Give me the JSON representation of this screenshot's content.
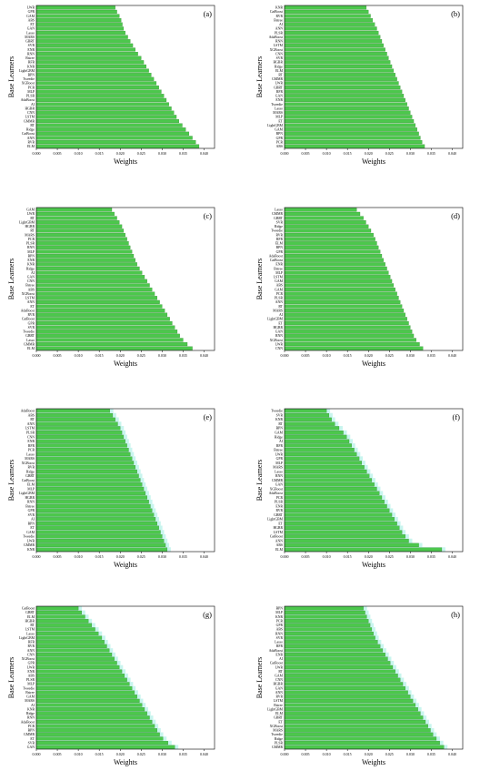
{
  "y_axis_label": "Base Learners",
  "x_axis_label": "Weights",
  "colors": {
    "bar": "#4cc74c",
    "bar_stroke": "#2e8b2e",
    "shadow": "#c8f5ee",
    "axis": "#000000"
  },
  "chart_data": [
    {
      "type": "bar",
      "orientation": "horizontal",
      "panel_label": "(a)",
      "xlim": [
        0,
        0.0425
      ],
      "ticks": [
        "0.000",
        "0.005",
        "0.010",
        "0.015",
        "0.020",
        "0.025",
        "0.030",
        "0.035",
        "0.040"
      ],
      "categories": [
        "LWR",
        "GPR",
        "GAM",
        "ABS",
        "ET",
        "GAN",
        "Lasso",
        "MARS",
        "GBRT",
        "SVR",
        "ENR",
        "RNN",
        "Bstree",
        "RFR",
        "KNR",
        "LightGBM",
        "BPN",
        "Tweedie",
        "XGBoost",
        "PCR",
        "MLP",
        "PLSR",
        "AdaBoost",
        "AI",
        "HGBR",
        "CNN",
        "LSTM",
        "GMMR",
        "RT",
        "Ridge",
        "CatBoost",
        "ANN",
        "RVR",
        "ELM"
      ],
      "values": [
        0.0188,
        0.0192,
        0.0198,
        0.0202,
        0.0205,
        0.0208,
        0.0212,
        0.0218,
        0.0224,
        0.023,
        0.0236,
        0.0242,
        0.025,
        0.0256,
        0.0262,
        0.0268,
        0.0274,
        0.028,
        0.0286,
        0.0292,
        0.0298,
        0.0304,
        0.031,
        0.0316,
        0.0322,
        0.0328,
        0.0334,
        0.034,
        0.0348,
        0.0356,
        0.0364,
        0.0372,
        0.038,
        0.0388
      ]
    },
    {
      "type": "bar",
      "orientation": "horizontal",
      "panel_label": "(b)",
      "xlim": [
        0,
        0.0425
      ],
      "ticks": [
        "0.000",
        "0.005",
        "0.010",
        "0.015",
        "0.020",
        "0.025",
        "0.030",
        "0.035",
        "0.040"
      ],
      "categories": [
        "KNR",
        "CatBoost",
        "RVR",
        "Bstree",
        "AI",
        "ANN",
        "PLSR",
        "AdaBoost",
        "RNN",
        "LSTM",
        "XGBoost",
        "CNN",
        "SVR",
        "HGBR",
        "Ridge",
        "ELM",
        "RT",
        "GMMR",
        "LWR",
        "GBRT",
        "RFR",
        "GAN",
        "ENR",
        "Tweedie",
        "Lasso",
        "MARS",
        "MLP",
        "ET",
        "LightGBM",
        "GAM",
        "BPN",
        "GPR",
        "PCR",
        "ABS"
      ],
      "values": [
        0.0195,
        0.02,
        0.0205,
        0.021,
        0.0215,
        0.022,
        0.0224,
        0.0228,
        0.0232,
        0.0236,
        0.024,
        0.0244,
        0.0248,
        0.0252,
        0.0256,
        0.026,
        0.0264,
        0.0268,
        0.0272,
        0.0276,
        0.028,
        0.0284,
        0.0288,
        0.0292,
        0.0296,
        0.03,
        0.0304,
        0.0308,
        0.0312,
        0.0316,
        0.032,
        0.0324,
        0.0328,
        0.0334
      ]
    },
    {
      "type": "bar",
      "orientation": "horizontal",
      "panel_label": "(c)",
      "xlim": [
        0,
        0.0425
      ],
      "ticks": [
        "0.000",
        "0.005",
        "0.010",
        "0.015",
        "0.020",
        "0.025",
        "0.030",
        "0.035",
        "0.040"
      ],
      "categories": [
        "GAM",
        "LWR",
        "RT",
        "LightGBM",
        "HGBR",
        "RT",
        "MARS",
        "PCR",
        "PLSR",
        "RNN",
        "MLP",
        "BPN",
        "ENR",
        "KNR",
        "Ridge",
        "AI",
        "GAN",
        "CNN",
        "Bstree",
        "ABS",
        "XGBoost",
        "LSTM",
        "ANN",
        "ET",
        "AdaBoost",
        "RVR",
        "CatBoost",
        "GPR",
        "SVR",
        "Tweedie",
        "GBRT",
        "Lasso",
        "GMMR",
        "ELM"
      ],
      "values": [
        0.018,
        0.0186,
        0.0192,
        0.0198,
        0.0204,
        0.0208,
        0.0212,
        0.0216,
        0.022,
        0.0224,
        0.0228,
        0.0232,
        0.0236,
        0.024,
        0.0246,
        0.0252,
        0.0258,
        0.0264,
        0.027,
        0.0276,
        0.0282,
        0.0288,
        0.0294,
        0.03,
        0.0306,
        0.0312,
        0.0318,
        0.0324,
        0.033,
        0.0336,
        0.0342,
        0.035,
        0.036,
        0.0372
      ]
    },
    {
      "type": "bar",
      "orientation": "horizontal",
      "panel_label": "(d)",
      "xlim": [
        0,
        0.0425
      ],
      "ticks": [
        "0.000",
        "0.005",
        "0.010",
        "0.015",
        "0.020",
        "0.025",
        "0.030",
        "0.035",
        "0.040"
      ],
      "categories": [
        "Lasso",
        "GMMR",
        "GBRT",
        "SVR",
        "Ridge",
        "Tweedie",
        "RVR",
        "RFR",
        "ELM",
        "BPN",
        "GPR",
        "AdaBoost",
        "CatBoost",
        "ENR",
        "Bstree",
        "MLP",
        "LSTM",
        "GAM",
        "ABS",
        "GAM",
        "PCR",
        "PLSR",
        "ANN",
        "RT",
        "MARS",
        "AI",
        "LightGBM",
        "ET",
        "HGBR",
        "GAN",
        "RNN",
        "XGBoost",
        "LWR",
        "CNN"
      ],
      "values": [
        0.0172,
        0.018,
        0.0188,
        0.0194,
        0.02,
        0.0206,
        0.0212,
        0.0216,
        0.022,
        0.0224,
        0.0228,
        0.0232,
        0.0236,
        0.024,
        0.0244,
        0.0248,
        0.0252,
        0.0256,
        0.026,
        0.0264,
        0.0268,
        0.0272,
        0.0276,
        0.028,
        0.0284,
        0.0288,
        0.0292,
        0.0296,
        0.03,
        0.0304,
        0.0308,
        0.0314,
        0.0322,
        0.033
      ]
    },
    {
      "type": "bar",
      "orientation": "horizontal",
      "panel_label": "(e)",
      "xlim": [
        0,
        0.0425
      ],
      "ticks": [
        "0.000",
        "0.005",
        "0.010",
        "0.015",
        "0.020",
        "0.025",
        "0.030",
        "0.035",
        "0.040"
      ],
      "categories": [
        "AdaBoost",
        "ABS",
        "RT",
        "ANN",
        "LSTM",
        "PLSR",
        "CNN",
        "ENR",
        "RFR",
        "PCR",
        "Lasso",
        "MARS",
        "XGBoost",
        "RVR",
        "Ridge",
        "GBRT",
        "CatBoost",
        "ELM",
        "MLP",
        "LightGBM",
        "HGBR",
        "RNN",
        "Bstree",
        "GPR",
        "SVR",
        "AI",
        "BPN",
        "ET",
        "GAM",
        "Tweedie",
        "LWR",
        "GMMR",
        "KNR"
      ],
      "values": [
        0.0175,
        0.0182,
        0.0188,
        0.0194,
        0.02,
        0.0204,
        0.0208,
        0.0212,
        0.0216,
        0.022,
        0.0224,
        0.0228,
        0.0232,
        0.0236,
        0.024,
        0.0244,
        0.0248,
        0.0252,
        0.0256,
        0.026,
        0.0264,
        0.0268,
        0.0272,
        0.0276,
        0.028,
        0.0284,
        0.0288,
        0.0292,
        0.0296,
        0.03,
        0.0304,
        0.0308,
        0.0312
      ]
    },
    {
      "type": "bar",
      "orientation": "horizontal",
      "panel_label": "(f)",
      "xlim": [
        0,
        0.0425
      ],
      "ticks": [
        "0.000",
        "0.005",
        "0.010",
        "0.015",
        "0.020",
        "0.025",
        "0.030",
        "0.035",
        "0.040"
      ],
      "categories": [
        "Tweedie",
        "SVR",
        "KNR",
        "RT",
        "BPN",
        "GAM",
        "Ridge",
        "AI",
        "RFR",
        "Bstree",
        "LWR",
        "GPR",
        "MLP",
        "MARS",
        "Lasso",
        "RNN",
        "GMMR",
        "GAN",
        "XGBoost",
        "AdaBoost",
        "PCR",
        "PLSR",
        "ENR",
        "RVR",
        "GBRT",
        "LightGBM",
        "ET",
        "HGBR",
        "LSTM",
        "CatBoost",
        "ANN",
        "ABS",
        "ELM"
      ],
      "values": [
        0.01,
        0.0106,
        0.0112,
        0.012,
        0.013,
        0.014,
        0.0148,
        0.0154,
        0.016,
        0.0166,
        0.0172,
        0.0178,
        0.0184,
        0.019,
        0.0196,
        0.0202,
        0.0208,
        0.0214,
        0.022,
        0.0226,
        0.0232,
        0.0238,
        0.0244,
        0.025,
        0.0256,
        0.0262,
        0.0268,
        0.0274,
        0.028,
        0.0288,
        0.0296,
        0.032,
        0.0375
      ]
    },
    {
      "type": "bar",
      "orientation": "horizontal",
      "panel_label": "(g)",
      "xlim": [
        0,
        0.0425
      ],
      "ticks": [
        "0.000",
        "0.005",
        "0.010",
        "0.015",
        "0.020",
        "0.025",
        "0.030",
        "0.035",
        "0.040"
      ],
      "categories": [
        "CatBoost",
        "GBRT",
        "ELM",
        "HGBR",
        "RT",
        "LSTM",
        "Lasso",
        "LightGBM",
        "RFR",
        "RVR",
        "ANN",
        "CNN",
        "XGBoost",
        "GPR",
        "LWR",
        "ENR",
        "ABS",
        "PLSR",
        "MLP",
        "Tweedie",
        "Bstree",
        "GAM",
        "MARS",
        "AI",
        "KNR",
        "Ridge",
        "RNN",
        "AdaBoost",
        "PCR",
        "BPN",
        "GMMR",
        "ET",
        "SVR",
        "GAN"
      ],
      "values": [
        0.01,
        0.0108,
        0.0116,
        0.0124,
        0.0132,
        0.014,
        0.0148,
        0.0156,
        0.0162,
        0.0168,
        0.0174,
        0.018,
        0.0186,
        0.0192,
        0.0198,
        0.0204,
        0.021,
        0.0216,
        0.0222,
        0.0228,
        0.0234,
        0.024,
        0.0246,
        0.0252,
        0.0258,
        0.0264,
        0.027,
        0.0276,
        0.0282,
        0.0288,
        0.0294,
        0.0302,
        0.0314,
        0.033
      ]
    },
    {
      "type": "bar",
      "orientation": "horizontal",
      "panel_label": "(h)",
      "xlim": [
        0,
        0.0425
      ],
      "ticks": [
        "0.000",
        "0.005",
        "0.010",
        "0.015",
        "0.020",
        "0.025",
        "0.030",
        "0.035",
        "0.040"
      ],
      "categories": [
        "BPN",
        "MLP",
        "KNR",
        "PCR",
        "GPR",
        "ABS",
        "RNN",
        "SVR",
        "Lasso",
        "RFR",
        "AdaBoost",
        "ENR",
        "AI",
        "CatBoost",
        "LWR",
        "RT",
        "GAM",
        "CNN",
        "HGBR",
        "GAN",
        "ANN",
        "RVR",
        "LSTM",
        "Bstree",
        "LightGBM",
        "ELM",
        "GBRT",
        "ET",
        "XGBoost",
        "MARS",
        "Tweedie",
        "Ridge",
        "PLSR",
        "GMMR"
      ],
      "values": [
        0.0188,
        0.0192,
        0.0196,
        0.02,
        0.0204,
        0.0208,
        0.0212,
        0.0216,
        0.0222,
        0.0228,
        0.0234,
        0.024,
        0.0246,
        0.0252,
        0.0258,
        0.0264,
        0.027,
        0.0276,
        0.0282,
        0.0288,
        0.0294,
        0.03,
        0.0306,
        0.0312,
        0.0318,
        0.0324,
        0.033,
        0.0336,
        0.0342,
        0.0348,
        0.0354,
        0.0362,
        0.037,
        0.038
      ]
    }
  ]
}
